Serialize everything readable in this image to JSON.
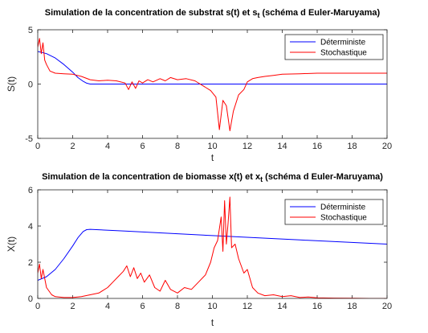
{
  "chart_data": [
    {
      "type": "line",
      "title": "Simulation de la concentration de substrat s(t) et s",
      "title_subscript": "t",
      "title_suffix": " (schéma d Euler-Maruyama)",
      "xlabel": "t",
      "ylabel": "S(t)",
      "xlim": [
        0,
        20
      ],
      "ylim": [
        -5,
        5
      ],
      "xticks": [
        "0",
        "2",
        "4",
        "6",
        "8",
        "10",
        "12",
        "14",
        "16",
        "18",
        "20"
      ],
      "yticks": [
        "5",
        "0",
        "-5"
      ],
      "legend_position": "top-right",
      "series": [
        {
          "name": "Déterministe",
          "color": "#0000ff",
          "x": [
            0,
            0.5,
            1.0,
            1.5,
            2.0,
            2.3,
            2.6,
            2.8,
            3.0,
            3.5,
            5,
            10,
            15,
            20
          ],
          "y": [
            3.0,
            2.8,
            2.4,
            1.8,
            1.1,
            0.6,
            0.25,
            0.08,
            0.0,
            0.0,
            0.0,
            0.0,
            0.0,
            0.0
          ]
        },
        {
          "name": "Stochastique",
          "color": "#ff0000",
          "x": [
            0,
            0.1,
            0.2,
            0.3,
            0.4,
            0.5,
            0.7,
            1.0,
            1.5,
            2.0,
            2.5,
            3.0,
            3.5,
            4.0,
            4.5,
            5.0,
            5.2,
            5.4,
            5.6,
            5.8,
            6.0,
            6.3,
            6.6,
            7.0,
            7.3,
            7.6,
            8.0,
            8.5,
            9.0,
            9.3,
            9.6,
            9.9,
            10.2,
            10.4,
            10.6,
            10.8,
            11.0,
            11.2,
            11.5,
            11.8,
            12.0,
            12.3,
            12.6,
            13.0,
            13.5,
            14.0,
            15.0,
            16.0,
            17.0,
            18.0,
            19.0,
            20.0
          ],
          "y": [
            3.4,
            4.2,
            2.8,
            3.8,
            2.2,
            1.8,
            1.2,
            1.0,
            0.95,
            0.9,
            0.7,
            0.4,
            0.3,
            0.35,
            0.3,
            0.1,
            -0.5,
            0.2,
            -0.4,
            0.3,
            0.1,
            0.4,
            0.2,
            0.5,
            0.3,
            0.6,
            0.4,
            0.5,
            0.3,
            0.0,
            -0.3,
            -0.6,
            -1.2,
            -4.2,
            -1.5,
            -2.0,
            -4.3,
            -2.5,
            -1.0,
            -0.5,
            0.2,
            0.5,
            0.6,
            0.7,
            0.8,
            0.9,
            0.95,
            1.0,
            1.0,
            1.0,
            1.0,
            1.0
          ]
        }
      ]
    },
    {
      "type": "line",
      "title": "Simulation de la concentration de biomasse x(t) et x",
      "title_subscript": "t",
      "title_suffix": " (schéma d Euler-Maruyama)",
      "xlabel": "t",
      "ylabel": "X(t)",
      "xlim": [
        0,
        20
      ],
      "ylim": [
        0,
        6
      ],
      "xticks": [
        "0",
        "2",
        "4",
        "6",
        "8",
        "10",
        "12",
        "14",
        "16",
        "18",
        "20"
      ],
      "yticks": [
        "6",
        "4",
        "2",
        "0"
      ],
      "legend_position": "top-right",
      "series": [
        {
          "name": "Déterministe",
          "color": "#0000ff",
          "x": [
            0,
            0.5,
            1.0,
            1.5,
            2.0,
            2.3,
            2.6,
            2.8,
            3.0,
            5,
            10,
            15,
            20
          ],
          "y": [
            1.0,
            1.2,
            1.6,
            2.2,
            2.9,
            3.35,
            3.7,
            3.8,
            3.82,
            3.72,
            3.47,
            3.23,
            3.0
          ]
        },
        {
          "name": "Stochastique",
          "color": "#ff0000",
          "x": [
            0,
            0.1,
            0.2,
            0.3,
            0.5,
            0.8,
            1.0,
            1.5,
            2.0,
            2.5,
            3.0,
            3.5,
            4.0,
            4.3,
            4.6,
            4.9,
            5.1,
            5.3,
            5.5,
            5.7,
            5.9,
            6.1,
            6.4,
            6.7,
            7.0,
            7.3,
            7.6,
            8.0,
            8.4,
            8.8,
            9.2,
            9.6,
            9.9,
            10.1,
            10.3,
            10.5,
            10.6,
            10.7,
            10.8,
            10.9,
            11.0,
            11.1,
            11.3,
            11.5,
            11.8,
            12.0,
            12.3,
            12.6,
            13.0,
            13.5,
            14.0,
            14.5,
            15.0,
            15.5,
            16.0,
            17.0,
            18.0,
            19.0,
            20.0
          ],
          "y": [
            1.4,
            1.9,
            1.1,
            1.6,
            0.6,
            0.2,
            0.1,
            0.05,
            0.05,
            0.1,
            0.2,
            0.3,
            0.6,
            0.9,
            1.2,
            1.5,
            1.8,
            1.2,
            1.7,
            1.1,
            1.4,
            0.9,
            1.3,
            0.6,
            0.4,
            1.0,
            0.5,
            0.3,
            0.6,
            0.5,
            0.9,
            1.3,
            2.0,
            2.8,
            3.2,
            4.5,
            2.6,
            5.4,
            3.0,
            4.2,
            5.6,
            2.8,
            3.0,
            2.2,
            1.4,
            1.6,
            0.6,
            0.3,
            0.15,
            0.2,
            0.1,
            0.15,
            0.05,
            0.08,
            0.03,
            0.02,
            0.01,
            0.0,
            0.0
          ]
        }
      ]
    }
  ]
}
